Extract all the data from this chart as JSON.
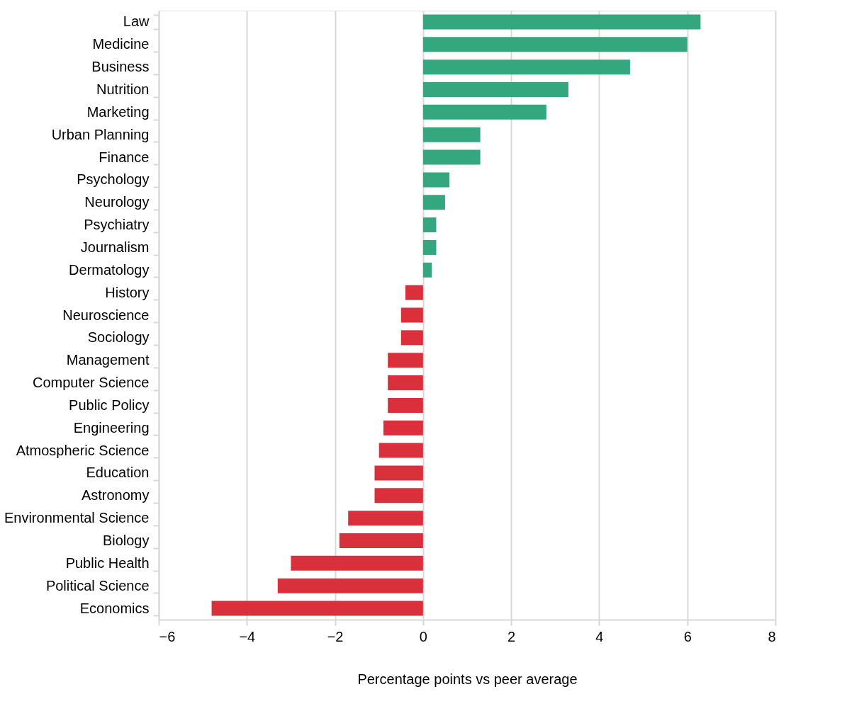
{
  "chart_data": {
    "type": "bar",
    "orientation": "horizontal",
    "xlabel": "Percentage points vs peer average",
    "categories": [
      "Law",
      "Medicine",
      "Business",
      "Nutrition",
      "Marketing",
      "Urban Planning",
      "Finance",
      "Psychology",
      "Neurology",
      "Psychiatry",
      "Journalism",
      "Dermatology",
      "History",
      "Neuroscience",
      "Sociology",
      "Management",
      "Computer Science",
      "Public Policy",
      "Engineering",
      "Atmospheric Science",
      "Education",
      "Astronomy",
      "Environmental Science",
      "Biology",
      "Public Health",
      "Political Science",
      "Economics"
    ],
    "values": [
      6.3,
      6.0,
      4.7,
      3.3,
      2.8,
      1.3,
      1.3,
      0.6,
      0.5,
      0.3,
      0.3,
      0.2,
      -0.4,
      -0.5,
      -0.5,
      -0.8,
      -0.8,
      -0.8,
      -0.9,
      -1.0,
      -1.1,
      -1.1,
      -1.7,
      -1.9,
      -3.0,
      -3.3,
      -4.8
    ],
    "colors": [
      "#34a77f",
      "#34a77f",
      "#34a77f",
      "#34a77f",
      "#34a77f",
      "#34a77f",
      "#34a77f",
      "#34a77f",
      "#34a77f",
      "#34a77f",
      "#34a77f",
      "#34a77f",
      "#d9303c",
      "#d9303c",
      "#d9303c",
      "#d9303c",
      "#d9303c",
      "#d9303c",
      "#d9303c",
      "#d9303c",
      "#d9303c",
      "#d9303c",
      "#d9303c",
      "#d9303c",
      "#d9303c",
      "#d9303c",
      "#d9303c"
    ],
    "xlim": [
      -6,
      8
    ],
    "xticks": [
      -6,
      -4,
      -2,
      0,
      2,
      4,
      6,
      8
    ],
    "grid": "x"
  }
}
